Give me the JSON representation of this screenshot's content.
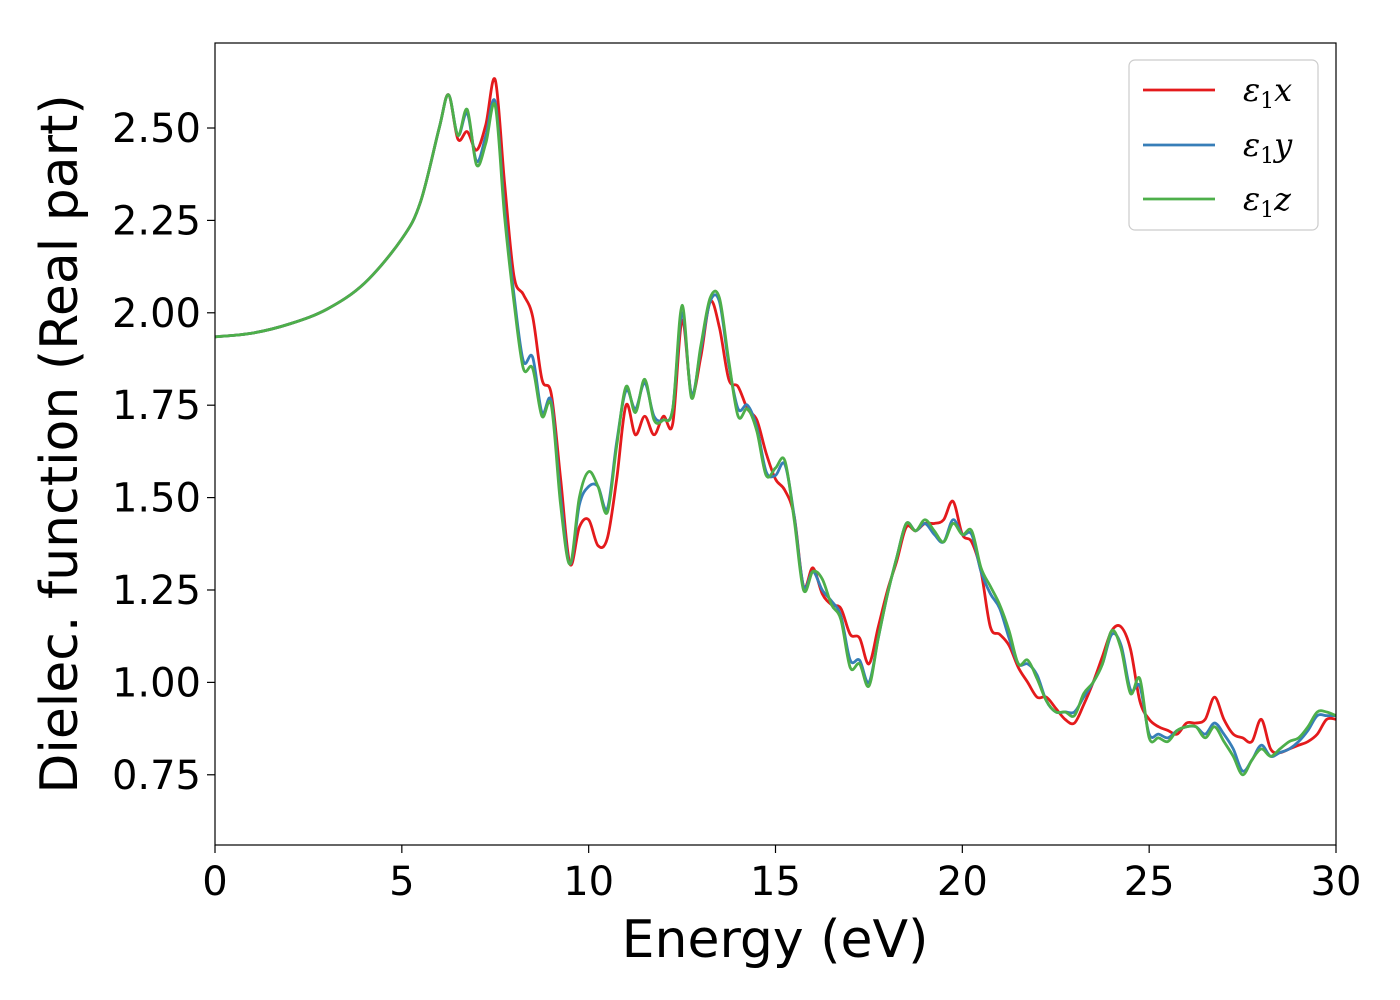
{
  "chart_data": {
    "type": "line",
    "title": "",
    "xlabel": "Energy (eV)",
    "ylabel": "Dielec. function (Real part)",
    "xlim": [
      0,
      30
    ],
    "ylim": [
      0.56,
      2.73
    ],
    "xticks": [
      0,
      5,
      10,
      15,
      20,
      25,
      30
    ],
    "xtick_labels": [
      "0",
      "5",
      "10",
      "15",
      "20",
      "25",
      "30"
    ],
    "yticks": [
      0.75,
      1.0,
      1.25,
      1.5,
      1.75,
      2.0,
      2.25,
      2.5
    ],
    "ytick_labels": [
      "0.75",
      "1.00",
      "1.25",
      "1.50",
      "1.75",
      "2.00",
      "2.25",
      "2.50"
    ],
    "grid": false,
    "legend_position": "top-right",
    "series": [
      {
        "name": "ε₁x",
        "label_base": "ε",
        "label_sub": "1",
        "label_var": "x",
        "color": "#e41a1c",
        "x": [
          0,
          1,
          2,
          3,
          4,
          5,
          5.5,
          6.0,
          6.25,
          6.5,
          6.75,
          7.0,
          7.25,
          7.5,
          7.75,
          8.0,
          8.25,
          8.5,
          8.75,
          9.0,
          9.25,
          9.5,
          9.75,
          10.0,
          10.25,
          10.5,
          10.75,
          11.0,
          11.25,
          11.5,
          11.75,
          12.0,
          12.25,
          12.5,
          12.75,
          13.0,
          13.25,
          13.5,
          13.75,
          14.0,
          14.25,
          14.5,
          14.75,
          15.0,
          15.25,
          15.5,
          15.75,
          16.0,
          16.25,
          16.5,
          16.75,
          17.0,
          17.25,
          17.5,
          17.75,
          18.0,
          18.25,
          18.5,
          18.75,
          19.0,
          19.25,
          19.5,
          19.75,
          20.0,
          20.25,
          20.5,
          20.75,
          21.0,
          21.25,
          21.5,
          21.75,
          22.0,
          22.25,
          22.5,
          22.75,
          23.0,
          23.25,
          23.5,
          23.75,
          24.0,
          24.25,
          24.5,
          24.75,
          25.0,
          25.25,
          25.5,
          25.75,
          26.0,
          26.25,
          26.5,
          26.75,
          27.0,
          27.25,
          27.5,
          27.75,
          28.0,
          28.25,
          28.5,
          28.75,
          29.0,
          29.25,
          29.5,
          29.75,
          30.0
        ],
        "y": [
          1.935,
          1.945,
          1.97,
          2.01,
          2.08,
          2.2,
          2.3,
          2.5,
          2.59,
          2.47,
          2.49,
          2.44,
          2.51,
          2.63,
          2.35,
          2.1,
          2.05,
          1.99,
          1.82,
          1.78,
          1.55,
          1.32,
          1.42,
          1.44,
          1.37,
          1.39,
          1.55,
          1.75,
          1.67,
          1.72,
          1.67,
          1.72,
          1.7,
          1.98,
          1.78,
          1.88,
          2.03,
          1.96,
          1.82,
          1.8,
          1.74,
          1.71,
          1.62,
          1.55,
          1.52,
          1.45,
          1.26,
          1.31,
          1.24,
          1.21,
          1.2,
          1.13,
          1.12,
          1.05,
          1.15,
          1.25,
          1.33,
          1.42,
          1.41,
          1.43,
          1.43,
          1.44,
          1.49,
          1.4,
          1.38,
          1.3,
          1.15,
          1.13,
          1.1,
          1.04,
          1.0,
          0.96,
          0.96,
          0.93,
          0.9,
          0.89,
          0.94,
          1.0,
          1.07,
          1.14,
          1.15,
          1.09,
          0.95,
          0.9,
          0.88,
          0.87,
          0.86,
          0.89,
          0.89,
          0.9,
          0.96,
          0.9,
          0.86,
          0.85,
          0.84,
          0.9,
          0.82,
          0.81,
          0.82,
          0.83,
          0.84,
          0.86,
          0.9,
          0.9
        ]
      },
      {
        "name": "ε₁y",
        "label_base": "ε",
        "label_sub": "1",
        "label_var": "y",
        "color": "#377eb8",
        "x": [
          0,
          1,
          2,
          3,
          4,
          5,
          5.5,
          6.0,
          6.25,
          6.5,
          6.75,
          7.0,
          7.25,
          7.5,
          7.75,
          8.0,
          8.25,
          8.5,
          8.75,
          9.0,
          9.25,
          9.5,
          9.75,
          10.0,
          10.25,
          10.5,
          10.75,
          11.0,
          11.25,
          11.5,
          11.75,
          12.0,
          12.25,
          12.5,
          12.75,
          13.0,
          13.25,
          13.5,
          13.75,
          14.0,
          14.25,
          14.5,
          14.75,
          15.0,
          15.25,
          15.5,
          15.75,
          16.0,
          16.25,
          16.5,
          16.75,
          17.0,
          17.25,
          17.5,
          17.75,
          18.0,
          18.25,
          18.5,
          18.75,
          19.0,
          19.25,
          19.5,
          19.75,
          20.0,
          20.25,
          20.5,
          20.75,
          21.0,
          21.25,
          21.5,
          21.75,
          22.0,
          22.25,
          22.5,
          22.75,
          23.0,
          23.25,
          23.5,
          23.75,
          24.0,
          24.25,
          24.5,
          24.75,
          25.0,
          25.25,
          25.5,
          25.75,
          26.0,
          26.25,
          26.5,
          26.75,
          27.0,
          27.25,
          27.5,
          27.75,
          28.0,
          28.25,
          28.5,
          28.75,
          29.0,
          29.25,
          29.5,
          29.75,
          30.0
        ],
        "y": [
          1.935,
          1.945,
          1.97,
          2.01,
          2.08,
          2.2,
          2.3,
          2.5,
          2.59,
          2.48,
          2.54,
          2.41,
          2.48,
          2.57,
          2.28,
          2.05,
          1.87,
          1.88,
          1.73,
          1.76,
          1.5,
          1.32,
          1.48,
          1.53,
          1.53,
          1.47,
          1.65,
          1.79,
          1.74,
          1.81,
          1.72,
          1.71,
          1.74,
          2.0,
          1.78,
          1.9,
          2.03,
          2.03,
          1.86,
          1.74,
          1.75,
          1.69,
          1.57,
          1.56,
          1.59,
          1.45,
          1.26,
          1.3,
          1.25,
          1.22,
          1.18,
          1.06,
          1.06,
          1.0,
          1.12,
          1.24,
          1.34,
          1.43,
          1.41,
          1.43,
          1.4,
          1.38,
          1.44,
          1.4,
          1.4,
          1.3,
          1.24,
          1.2,
          1.12,
          1.05,
          1.05,
          1.02,
          0.95,
          0.92,
          0.92,
          0.92,
          0.96,
          1.0,
          1.05,
          1.13,
          1.1,
          0.98,
          0.99,
          0.86,
          0.86,
          0.85,
          0.87,
          0.88,
          0.88,
          0.86,
          0.89,
          0.86,
          0.82,
          0.76,
          0.79,
          0.83,
          0.8,
          0.81,
          0.82,
          0.84,
          0.87,
          0.91,
          0.91,
          0.91
        ]
      },
      {
        "name": "ε₁z",
        "label_base": "ε",
        "label_sub": "1",
        "label_var": "z",
        "color": "#4daf4a",
        "x": [
          0,
          1,
          2,
          3,
          4,
          5,
          5.5,
          6.0,
          6.25,
          6.5,
          6.75,
          7.0,
          7.25,
          7.5,
          7.75,
          8.0,
          8.25,
          8.5,
          8.75,
          9.0,
          9.25,
          9.5,
          9.75,
          10.0,
          10.25,
          10.5,
          10.75,
          11.0,
          11.25,
          11.5,
          11.75,
          12.0,
          12.25,
          12.5,
          12.75,
          13.0,
          13.25,
          13.5,
          13.75,
          14.0,
          14.25,
          14.5,
          14.75,
          15.0,
          15.25,
          15.5,
          15.75,
          16.0,
          16.25,
          16.5,
          16.75,
          17.0,
          17.25,
          17.5,
          17.75,
          18.0,
          18.25,
          18.5,
          18.75,
          19.0,
          19.25,
          19.5,
          19.75,
          20.0,
          20.25,
          20.5,
          20.75,
          21.0,
          21.25,
          21.5,
          21.75,
          22.0,
          22.25,
          22.5,
          22.75,
          23.0,
          23.25,
          23.5,
          23.75,
          24.0,
          24.25,
          24.5,
          24.75,
          25.0,
          25.25,
          25.5,
          25.75,
          26.0,
          26.25,
          26.5,
          26.75,
          27.0,
          27.25,
          27.5,
          27.75,
          28.0,
          28.25,
          28.5,
          28.75,
          29.0,
          29.25,
          29.5,
          29.75,
          30.0
        ],
        "y": [
          1.935,
          1.945,
          1.97,
          2.01,
          2.08,
          2.2,
          2.3,
          2.5,
          2.59,
          2.48,
          2.55,
          2.4,
          2.46,
          2.56,
          2.26,
          2.03,
          1.85,
          1.85,
          1.72,
          1.75,
          1.48,
          1.32,
          1.5,
          1.57,
          1.53,
          1.46,
          1.64,
          1.8,
          1.73,
          1.82,
          1.71,
          1.71,
          1.74,
          2.02,
          1.77,
          1.91,
          2.04,
          2.04,
          1.87,
          1.72,
          1.74,
          1.68,
          1.56,
          1.58,
          1.6,
          1.44,
          1.25,
          1.3,
          1.28,
          1.21,
          1.17,
          1.04,
          1.05,
          0.99,
          1.12,
          1.24,
          1.34,
          1.43,
          1.41,
          1.44,
          1.41,
          1.38,
          1.43,
          1.4,
          1.41,
          1.31,
          1.26,
          1.21,
          1.14,
          1.05,
          1.06,
          1.01,
          0.95,
          0.92,
          0.92,
          0.91,
          0.97,
          1.0,
          1.05,
          1.14,
          1.09,
          0.97,
          1.01,
          0.85,
          0.85,
          0.84,
          0.87,
          0.88,
          0.88,
          0.85,
          0.88,
          0.84,
          0.8,
          0.75,
          0.79,
          0.82,
          0.8,
          0.82,
          0.84,
          0.85,
          0.88,
          0.92,
          0.92,
          0.91
        ]
      }
    ]
  }
}
